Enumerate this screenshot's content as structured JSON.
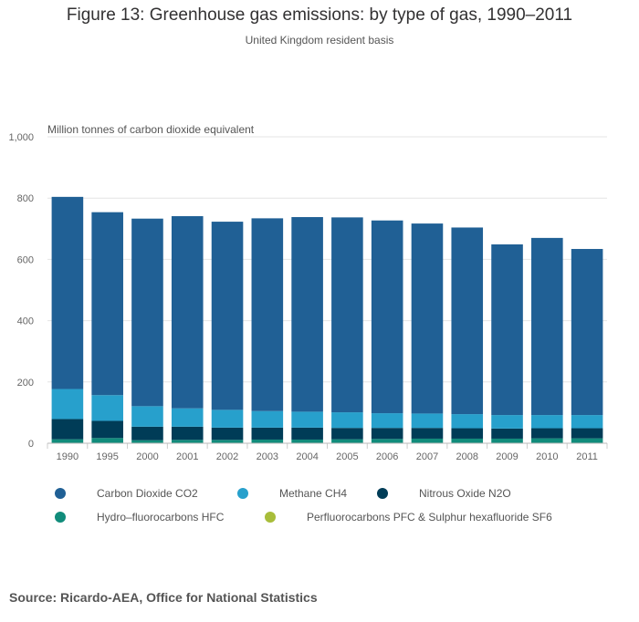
{
  "chart_data": {
    "type": "bar",
    "stacked": true,
    "title": "Figure 13: Greenhouse gas emissions: by type of gas, 1990–2011",
    "subtitle": "United Kingdom resident basis",
    "ylabel": "Million tonnes of carbon dioxide equivalent",
    "xlabel": "",
    "ylim": [
      0,
      1000
    ],
    "yticks": [
      0,
      200,
      400,
      600,
      800,
      1000
    ],
    "ytick_labels": [
      "0",
      "200",
      "400",
      "600",
      "800",
      "1,000"
    ],
    "grid": true,
    "categories": [
      "1990",
      "1995",
      "2000",
      "2001",
      "2002",
      "2003",
      "2004",
      "2005",
      "2006",
      "2007",
      "2008",
      "2009",
      "2010",
      "2011"
    ],
    "series": [
      {
        "name": "Perfluorocarbons PFC & Sulphur hexafluoride SF6",
        "color": "#a8bd3a",
        "values": [
          1.5,
          1.5,
          1,
          1,
          1,
          1,
          1,
          1,
          1,
          1,
          1,
          1,
          1,
          1
        ]
      },
      {
        "name": "Hydro–fluorocarbons HFC",
        "color": "#118c7b",
        "values": [
          11.5,
          15.5,
          9,
          10,
          10,
          11,
          11,
          12,
          13,
          14,
          14,
          14,
          15,
          15
        ]
      },
      {
        "name": "Nitrous Oxide N2O",
        "color": "#003c57",
        "values": [
          66,
          56,
          44,
          43,
          40,
          39,
          39,
          37,
          36,
          35,
          34,
          33,
          33,
          33
        ]
      },
      {
        "name": "Methane CH4",
        "color": "#27a0cc",
        "values": [
          98,
          84,
          67,
          60,
          58,
          54,
          52,
          51,
          48,
          47,
          46,
          44,
          43,
          43
        ]
      },
      {
        "name": "Carbon Dioxide CO2",
        "color": "#206095",
        "values": [
          627,
          597,
          612,
          627,
          614,
          629,
          635,
          636,
          629,
          620,
          609,
          557,
          578,
          542
        ]
      }
    ],
    "legend": {
      "position": "bottom",
      "order": [
        "Carbon Dioxide CO2",
        "Methane CH4",
        "Nitrous Oxide N2O",
        "Hydro–fluorocarbons HFC",
        "Perfluorocarbons PFC & Sulphur hexafluoride SF6"
      ]
    }
  },
  "source": "Source: Ricardo-AEA, Office for National Statistics"
}
